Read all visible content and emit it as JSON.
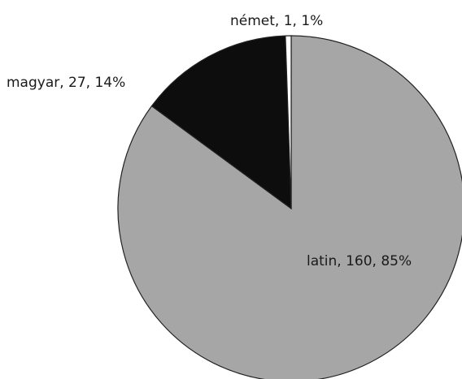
{
  "chart_data": {
    "type": "pie",
    "start_angle_deg": 0,
    "direction": "clockwise",
    "slices": [
      {
        "label": "latin",
        "value": 160,
        "percent": "85%",
        "color": "#a6a6a6",
        "text": "latin, 160, 85%"
      },
      {
        "label": "magyar",
        "value": 27,
        "percent": "14%",
        "color": "#0d0d0d",
        "text": "magyar, 27, 14%"
      },
      {
        "label": "német",
        "value": 1,
        "percent": "1%",
        "color": "#ffffff",
        "text": "német, 1, 1%"
      }
    ],
    "title": "",
    "legend": "none"
  }
}
